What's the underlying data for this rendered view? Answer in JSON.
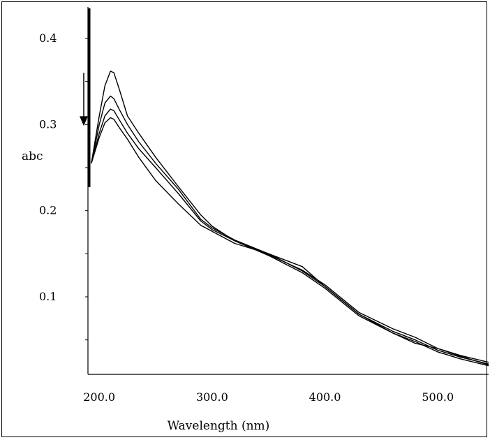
{
  "chart_data": {
    "type": "line",
    "title": "",
    "xlabel": "Wavelength (nm)",
    "ylabel": "abc",
    "xlim": [
      190,
      545
    ],
    "ylim": [
      0.01,
      0.43
    ],
    "x_ticks": [
      {
        "value": 200,
        "label": "200.0"
      },
      {
        "value": 300,
        "label": "300.0"
      },
      {
        "value": 400,
        "label": "400.0"
      },
      {
        "value": 500,
        "label": "500.0"
      }
    ],
    "y_ticks": [
      {
        "value": 0.1,
        "label": "0.1"
      },
      {
        "value": 0.2,
        "label": "0.2"
      },
      {
        "value": 0.3,
        "label": "0.3"
      },
      {
        "value": 0.4,
        "label": "0.4"
      }
    ],
    "grid": false,
    "annotations": [
      {
        "type": "arrow",
        "direction": "down",
        "meaning": "absorbance decreases across successive spectra",
        "x": 187,
        "y_from": 0.36,
        "y_to": 0.3
      }
    ],
    "series": [
      {
        "x": [
          193,
          200,
          205,
          210,
          213,
          218,
          225,
          235,
          250,
          270,
          290,
          300,
          320,
          350,
          380,
          400,
          430,
          460,
          480,
          500,
          520,
          545
        ],
        "values": [
          0.255,
          0.31,
          0.345,
          0.362,
          0.36,
          0.34,
          0.31,
          0.29,
          0.262,
          0.228,
          0.195,
          0.182,
          0.165,
          0.148,
          0.128,
          0.11,
          0.078,
          0.058,
          0.046,
          0.04,
          0.032,
          0.024
        ]
      },
      {
        "x": [
          193,
          200,
          205,
          210,
          213,
          218,
          225,
          235,
          250,
          270,
          290,
          300,
          320,
          350,
          380,
          400,
          430,
          460,
          480,
          500,
          520,
          545
        ],
        "values": [
          0.255,
          0.3,
          0.325,
          0.333,
          0.33,
          0.317,
          0.3,
          0.28,
          0.255,
          0.225,
          0.19,
          0.18,
          0.166,
          0.15,
          0.13,
          0.112,
          0.08,
          0.06,
          0.05,
          0.038,
          0.03,
          0.022
        ]
      },
      {
        "x": [
          193,
          200,
          205,
          210,
          213,
          218,
          225,
          235,
          250,
          270,
          290,
          300,
          320,
          350,
          380,
          400,
          430,
          460,
          480,
          500,
          520,
          545
        ],
        "values": [
          0.255,
          0.29,
          0.31,
          0.318,
          0.316,
          0.305,
          0.29,
          0.272,
          0.25,
          0.22,
          0.188,
          0.178,
          0.165,
          0.149,
          0.131,
          0.114,
          0.082,
          0.063,
          0.053,
          0.04,
          0.031,
          0.021
        ]
      },
      {
        "x": [
          193,
          200,
          205,
          210,
          213,
          218,
          225,
          235,
          250,
          270,
          290,
          300,
          320,
          350,
          380,
          400,
          430,
          460,
          480,
          500,
          520,
          545
        ],
        "values": [
          0.255,
          0.285,
          0.302,
          0.308,
          0.306,
          0.296,
          0.283,
          0.262,
          0.235,
          0.208,
          0.183,
          0.176,
          0.162,
          0.15,
          0.135,
          0.112,
          0.08,
          0.058,
          0.048,
          0.036,
          0.028,
          0.02
        ]
      }
    ],
    "series_color": "#000000"
  }
}
